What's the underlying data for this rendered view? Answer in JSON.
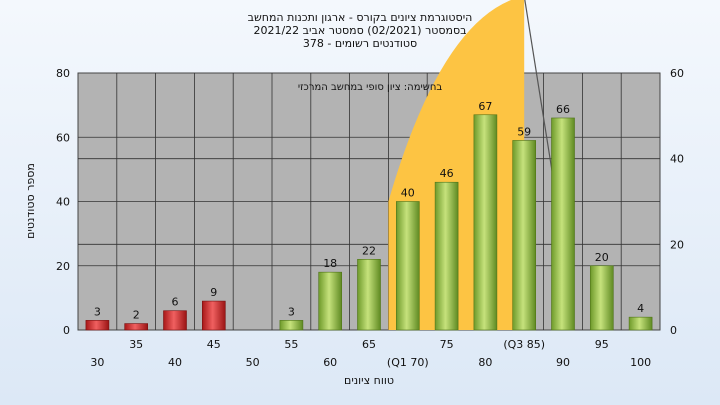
{
  "chart_data": {
    "type": "bar",
    "title_lines": [
      "היסטוגרמת ציונים בקורס - ארגון ותכנות המחשב",
      "בסמסטר  (02/2021)  סמסטר אביב 2021/22",
      "סטודנטים רשומים - 378"
    ],
    "xlabel": "טווח ציונים",
    "ylabel": "מספר סטודנטים",
    "ylim": [
      0,
      80
    ],
    "y_ticks": [
      0,
      20,
      40,
      60,
      80
    ],
    "y2lim": [
      0,
      60
    ],
    "y2_ticks": [
      0,
      20,
      40,
      60
    ],
    "x_tick_labels": [
      "30",
      "35",
      "40",
      "45",
      "50",
      "55",
      "60",
      "65",
      "(Q1 70)",
      "75",
      "80",
      "(Q3 85)",
      "90",
      "95",
      "100"
    ],
    "categories": [
      "30",
      "35",
      "40",
      "45",
      "50",
      "55",
      "60",
      "65",
      "70",
      "75",
      "80",
      "85",
      "90",
      "95",
      "100"
    ],
    "values": [
      3,
      2,
      6,
      9,
      0,
      3,
      18,
      22,
      40,
      46,
      67,
      59,
      66,
      20,
      4
    ],
    "bar_colors": [
      "#d42a2a",
      "#d42a2a",
      "#d42a2a",
      "#d42a2a",
      "#d42a2a",
      "#8cbc3e",
      "#8cbc3e",
      "#8cbc3e",
      "#8cbc3e",
      "#8cbc3e",
      "#8cbc3e",
      "#8cbc3e",
      "#8cbc3e",
      "#8cbc3e",
      "#8cbc3e"
    ],
    "annotation": "בחשימה: ציון סופי במחשב המרכזי",
    "iqr_band": {
      "from": 70,
      "to": 85,
      "peak": 78,
      "color": "#fdc443"
    },
    "grid": true,
    "colors": {
      "plot_bg": "#b3b3b3",
      "grid": "#222222",
      "red": "#d42a2a",
      "green": "#8cbc3e",
      "band": "#fdc443"
    }
  }
}
